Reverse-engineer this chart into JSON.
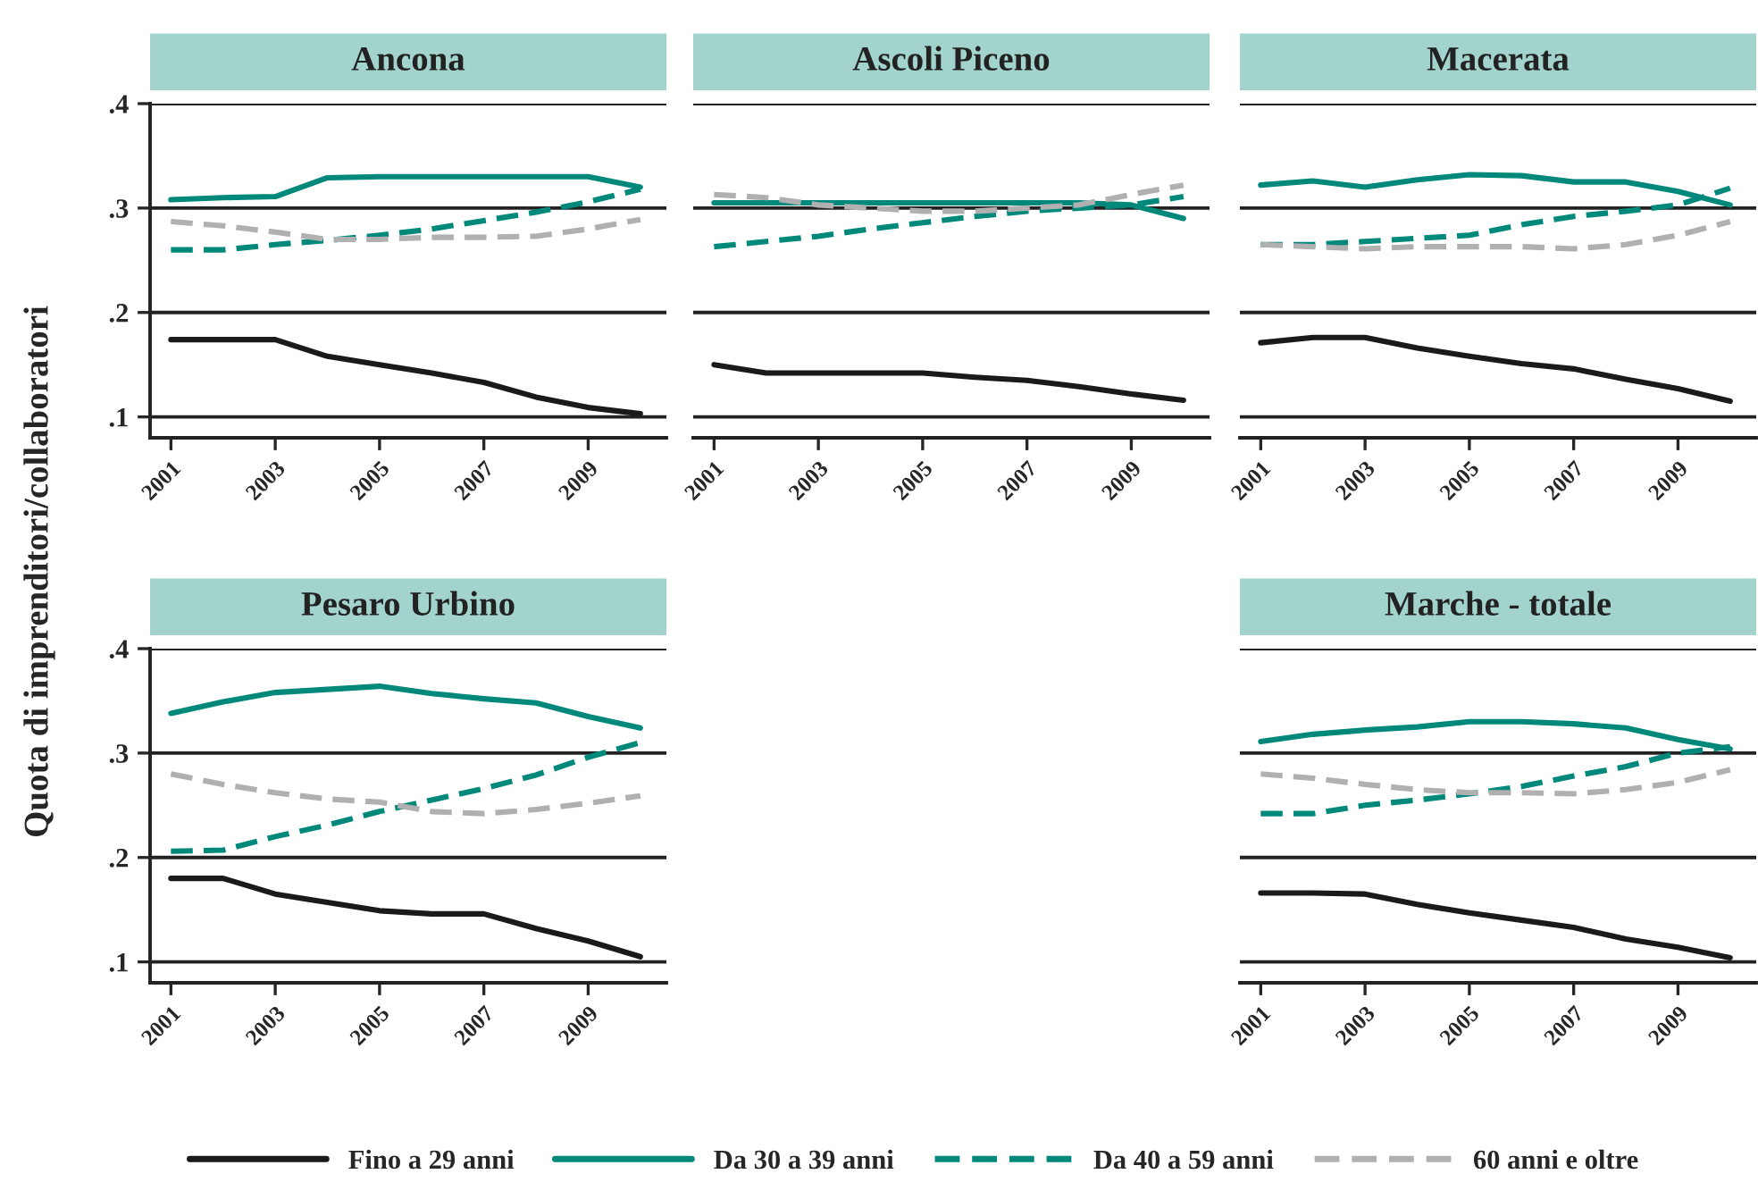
{
  "chart_data": [
    {
      "type": "line",
      "title": "Ancona",
      "ylabel": "Quota di imprenditori/collaboratori",
      "legend": "bottom",
      "x": [
        2001,
        2002,
        2003,
        2004,
        2005,
        2006,
        2007,
        2008,
        2009,
        2010
      ],
      "xlim": [
        2000.6,
        2010.5
      ],
      "xticks": [
        2001,
        2003,
        2005,
        2007,
        2009
      ],
      "ylim": [
        0.08,
        0.4
      ],
      "yticks": [
        {
          "value": 0.1,
          "label": ".1"
        },
        {
          "value": 0.2,
          "label": ".2"
        },
        {
          "value": 0.3,
          "label": ".3"
        },
        {
          "value": 0.4,
          "label": ".4"
        }
      ],
      "grid": "y",
      "series": [
        {
          "name": "Fino a 29 anni",
          "color": "#1a1a1a",
          "line_style": "solid",
          "values": [
            0.174,
            0.174,
            0.174,
            0.158,
            0.15,
            0.142,
            0.133,
            0.119,
            0.109,
            0.103
          ]
        },
        {
          "name": "Da 30 a 39 anni",
          "color": "#00897b",
          "line_style": "solid",
          "values": [
            0.308,
            0.31,
            0.311,
            0.329,
            0.33,
            0.33,
            0.33,
            0.33,
            0.33,
            0.32
          ]
        },
        {
          "name": "Da 40 a 59 anni",
          "color": "#00897b",
          "line_style": "dashed",
          "values": [
            0.26,
            0.26,
            0.265,
            0.269,
            0.274,
            0.28,
            0.288,
            0.296,
            0.306,
            0.318
          ]
        },
        {
          "name": "60 anni e oltre",
          "color": "#b0b0b0",
          "line_style": "dashed",
          "values": [
            0.287,
            0.283,
            0.277,
            0.27,
            0.27,
            0.272,
            0.272,
            0.273,
            0.28,
            0.289
          ]
        }
      ]
    },
    {
      "type": "line",
      "title": "Ascoli Piceno",
      "x": [
        2001,
        2002,
        2003,
        2004,
        2005,
        2006,
        2007,
        2008,
        2009,
        2010
      ],
      "xlim": [
        2000.6,
        2010.5
      ],
      "xticks": [
        2001,
        2003,
        2005,
        2007,
        2009
      ],
      "ylim": [
        0.08,
        0.4
      ],
      "yticks": [
        {
          "value": 0.1,
          "label": null
        },
        {
          "value": 0.2,
          "label": null
        },
        {
          "value": 0.3,
          "label": null
        },
        {
          "value": 0.4,
          "label": null
        }
      ],
      "grid": "y",
      "tick_labels": "x",
      "series": [
        {
          "color": "#1a1a1a",
          "line_style": "solid",
          "values": [
            0.15,
            0.142,
            0.142,
            0.142,
            0.142,
            0.138,
            0.135,
            0.129,
            0.122,
            0.116
          ]
        },
        {
          "color": "#00897b",
          "line_style": "solid",
          "values": [
            0.305,
            0.305,
            0.305,
            0.305,
            0.305,
            0.305,
            0.305,
            0.305,
            0.303,
            0.29
          ]
        },
        {
          "color": "#00897b",
          "line_style": "dashed",
          "values": [
            0.263,
            0.268,
            0.273,
            0.28,
            0.286,
            0.292,
            0.297,
            0.3,
            0.303,
            0.311
          ]
        },
        {
          "color": "#b0b0b0",
          "line_style": "dashed",
          "values": [
            0.313,
            0.31,
            0.303,
            0.3,
            0.297,
            0.297,
            0.3,
            0.303,
            0.313,
            0.322
          ]
        }
      ]
    },
    {
      "type": "line",
      "title": "Macerata",
      "x": [
        2001,
        2002,
        2003,
        2004,
        2005,
        2006,
        2007,
        2008,
        2009,
        2010
      ],
      "xlim": [
        2000.6,
        2010.5
      ],
      "xticks": [
        2001,
        2003,
        2005,
        2007,
        2009
      ],
      "ylim": [
        0.08,
        0.4
      ],
      "yticks": [
        {
          "value": 0.1,
          "label": null
        },
        {
          "value": 0.2,
          "label": null
        },
        {
          "value": 0.3,
          "label": null
        },
        {
          "value": 0.4,
          "label": null
        }
      ],
      "grid": "y",
      "tick_labels": "x",
      "series": [
        {
          "color": "#1a1a1a",
          "line_style": "solid",
          "values": [
            0.171,
            0.176,
            0.176,
            0.166,
            0.158,
            0.151,
            0.146,
            0.136,
            0.127,
            0.115
          ]
        },
        {
          "color": "#00897b",
          "line_style": "solid",
          "values": [
            0.322,
            0.326,
            0.32,
            0.327,
            0.332,
            0.331,
            0.325,
            0.325,
            0.316,
            0.303
          ]
        },
        {
          "color": "#00897b",
          "line_style": "dashed",
          "values": [
            0.265,
            0.265,
            0.268,
            0.271,
            0.274,
            0.284,
            0.292,
            0.297,
            0.303,
            0.319
          ]
        },
        {
          "color": "#b0b0b0",
          "line_style": "dashed",
          "values": [
            0.265,
            0.263,
            0.261,
            0.263,
            0.263,
            0.263,
            0.261,
            0.265,
            0.274,
            0.287
          ]
        }
      ]
    },
    {
      "type": "line",
      "title": "Pesaro Urbino",
      "x": [
        2001,
        2002,
        2003,
        2004,
        2005,
        2006,
        2007,
        2008,
        2009,
        2010
      ],
      "xlim": [
        2000.6,
        2010.5
      ],
      "xticks": [
        2001,
        2003,
        2005,
        2007,
        2009
      ],
      "ylim": [
        0.08,
        0.4
      ],
      "yticks": [
        {
          "value": 0.1,
          "label": ".1"
        },
        {
          "value": 0.2,
          "label": ".2"
        },
        {
          "value": 0.3,
          "label": ".3"
        },
        {
          "value": 0.4,
          "label": ".4"
        }
      ],
      "grid": "y",
      "series": [
        {
          "color": "#1a1a1a",
          "line_style": "solid",
          "values": [
            0.18,
            0.18,
            0.165,
            0.157,
            0.149,
            0.146,
            0.146,
            0.132,
            0.12,
            0.105
          ]
        },
        {
          "color": "#00897b",
          "line_style": "solid",
          "values": [
            0.338,
            0.349,
            0.358,
            0.361,
            0.364,
            0.357,
            0.352,
            0.348,
            0.335,
            0.324
          ]
        },
        {
          "color": "#00897b",
          "line_style": "dashed",
          "values": [
            0.206,
            0.207,
            0.22,
            0.231,
            0.244,
            0.255,
            0.266,
            0.279,
            0.296,
            0.31
          ]
        },
        {
          "color": "#b0b0b0",
          "line_style": "dashed",
          "values": [
            0.28,
            0.27,
            0.262,
            0.256,
            0.253,
            0.244,
            0.242,
            0.246,
            0.252,
            0.259
          ]
        }
      ]
    },
    {
      "type": "line",
      "title": "Marche - totale",
      "x": [
        2001,
        2002,
        2003,
        2004,
        2005,
        2006,
        2007,
        2008,
        2009,
        2010
      ],
      "xlim": [
        2000.6,
        2010.5
      ],
      "xticks": [
        2001,
        2003,
        2005,
        2007,
        2009
      ],
      "ylim": [
        0.08,
        0.4
      ],
      "yticks": [
        {
          "value": 0.1,
          "label": null
        },
        {
          "value": 0.2,
          "label": null
        },
        {
          "value": 0.3,
          "label": null
        },
        {
          "value": 0.4,
          "label": null
        }
      ],
      "grid": "y",
      "tick_labels": "x",
      "series": [
        {
          "color": "#1a1a1a",
          "line_style": "solid",
          "values": [
            0.166,
            0.166,
            0.165,
            0.155,
            0.147,
            0.14,
            0.133,
            0.122,
            0.114,
            0.104
          ]
        },
        {
          "color": "#00897b",
          "line_style": "solid",
          "values": [
            0.311,
            0.318,
            0.322,
            0.325,
            0.33,
            0.33,
            0.328,
            0.324,
            0.313,
            0.304
          ]
        },
        {
          "color": "#00897b",
          "line_style": "dashed",
          "values": [
            0.242,
            0.242,
            0.25,
            0.255,
            0.261,
            0.268,
            0.278,
            0.287,
            0.3,
            0.306
          ]
        },
        {
          "color": "#b0b0b0",
          "line_style": "dashed",
          "values": [
            0.28,
            0.276,
            0.27,
            0.265,
            0.262,
            0.262,
            0.261,
            0.265,
            0.272,
            0.284
          ]
        }
      ]
    }
  ]
}
